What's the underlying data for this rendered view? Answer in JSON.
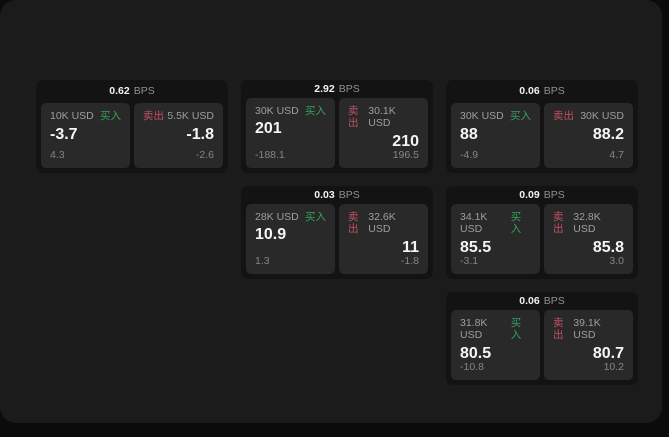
{
  "colors": {
    "green": "#33a35a",
    "red": "#c24f63",
    "panel_bg": "#1b1b1b",
    "card_bg": "#131313",
    "tile_bg": "#292929"
  },
  "labels": {
    "buy": "买入",
    "sell": "卖出",
    "bps_unit": "BPS"
  },
  "cards": [
    {
      "bps": "0.62",
      "buy": {
        "amount": "10K USD",
        "value": "-3.7",
        "sub": "4.3"
      },
      "sell": {
        "amount": "5.5K USD",
        "value": "-1.8",
        "sub": "-2.6"
      }
    },
    {
      "bps": "2.92",
      "buy": {
        "amount": "30K USD",
        "value": "201",
        "sub": "-188.1"
      },
      "sell": {
        "amount": "30.1K USD",
        "value": "210",
        "sub": "196.5"
      }
    },
    {
      "bps": "0.06",
      "buy": {
        "amount": "30K USD",
        "value": "88",
        "sub": "-4.9"
      },
      "sell": {
        "amount": "30K USD",
        "value": "88.2",
        "sub": "4.7"
      }
    },
    {
      "bps": "0.03",
      "buy": {
        "amount": "28K USD",
        "value": "10.9",
        "sub": "1.3"
      },
      "sell": {
        "amount": "32.6K USD",
        "value": "11",
        "sub": "-1.8"
      }
    },
    {
      "bps": "0.09",
      "buy": {
        "amount": "34.1K USD",
        "value": "85.5",
        "sub": "-3.1"
      },
      "sell": {
        "amount": "32.8K USD",
        "value": "85.8",
        "sub": "3.0"
      }
    },
    {
      "bps": "0.06",
      "buy": {
        "amount": "31.8K USD",
        "value": "80.5",
        "sub": "-10.8"
      },
      "sell": {
        "amount": "39.1K USD",
        "value": "80.7",
        "sub": "10.2"
      }
    }
  ]
}
